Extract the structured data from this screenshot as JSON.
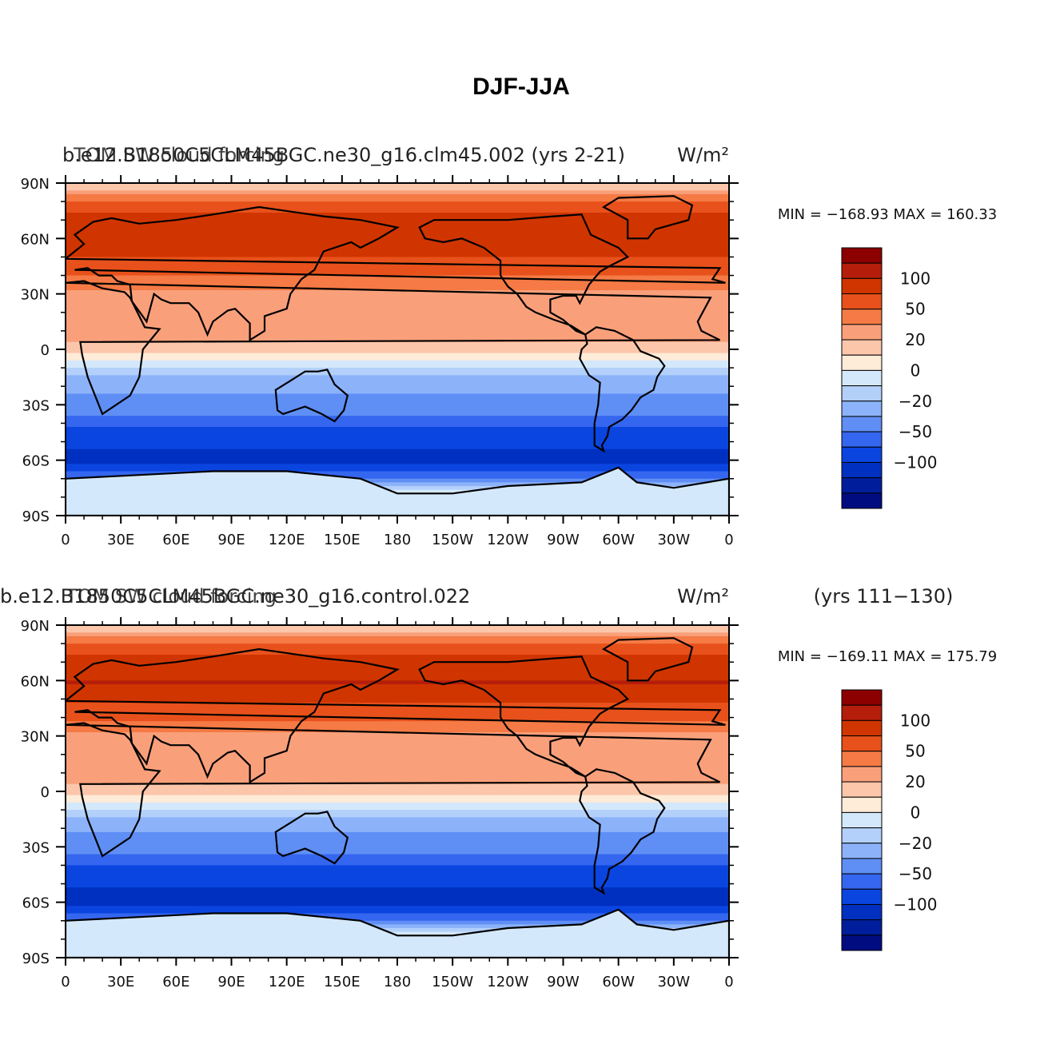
{
  "figure": {
    "title": "DJF-JJA"
  },
  "palette": [
    "#8c0000",
    "#b51e0a",
    "#d03500",
    "#e8511b",
    "#f57a45",
    "#f9a07b",
    "#fcc6ab",
    "#feebd8",
    "#d4e8fb",
    "#b3d0fb",
    "#8cb3fa",
    "#5f8ff5",
    "#3566ef",
    "#0a45e0",
    "#0030c0",
    "#001e9c",
    "#000c80"
  ],
  "land_color": "#000000",
  "chart_data": [
    {
      "type": "heatmap",
      "title_left": "b.e12.B1850C5CLM45BGC.ne30_g16.clm45.002 (yrs 2-21)",
      "title_left_overlay": "TOM SW cloud forcing",
      "title_right": "W/m²",
      "min_max": "MIN = −168.93  MAX = 160.33",
      "xlabel": "",
      "ylabel": "",
      "x_ticks": [
        "0",
        "30E",
        "60E",
        "90E",
        "120E",
        "150E",
        "180",
        "150W",
        "120W",
        "90W",
        "60W",
        "30W",
        "0"
      ],
      "y_ticks": [
        "90N",
        "60N",
        "30N",
        "0",
        "30S",
        "60S",
        "90S"
      ],
      "lat_range": [
        -90,
        90
      ],
      "lon_range": [
        0,
        360
      ],
      "colorbar_labels": [
        "100",
        "50",
        "20",
        "0",
        "−20",
        "−50",
        "−100"
      ],
      "zonal_mean_profile": [
        {
          "lat": 90,
          "value": 10
        },
        {
          "lat": 75,
          "value": 75
        },
        {
          "lat": 60,
          "value": 95
        },
        {
          "lat": 45,
          "value": 60
        },
        {
          "lat": 30,
          "value": 20
        },
        {
          "lat": 15,
          "value": 30
        },
        {
          "lat": 0,
          "value": 15
        },
        {
          "lat": -15,
          "value": -25
        },
        {
          "lat": -30,
          "value": -35
        },
        {
          "lat": -45,
          "value": -90
        },
        {
          "lat": -60,
          "value": -110
        },
        {
          "lat": -75,
          "value": -10
        },
        {
          "lat": -90,
          "value": -5
        }
      ]
    },
    {
      "type": "heatmap",
      "title_left": "b.e12.B1850C5CLM45BGC.ne30_g16.control.022",
      "title_left_overlay": "TOM SW cloud forcing",
      "title_right": "W/m²",
      "title_extra": "(yrs 111−130)",
      "min_max": "MIN = −169.11  MAX = 175.79",
      "xlabel": "",
      "ylabel": "",
      "x_ticks": [
        "0",
        "30E",
        "60E",
        "90E",
        "120E",
        "150E",
        "180",
        "150W",
        "120W",
        "90W",
        "60W",
        "30W",
        "0"
      ],
      "y_ticks": [
        "90N",
        "60N",
        "30N",
        "0",
        "30S",
        "60S",
        "90S"
      ],
      "lat_range": [
        -90,
        90
      ],
      "lon_range": [
        0,
        360
      ],
      "colorbar_labels": [
        "100",
        "50",
        "20",
        "0",
        "−20",
        "−50",
        "−100"
      ],
      "zonal_mean_profile": [
        {
          "lat": 90,
          "value": 10
        },
        {
          "lat": 75,
          "value": 75
        },
        {
          "lat": 60,
          "value": 100
        },
        {
          "lat": 45,
          "value": 65
        },
        {
          "lat": 30,
          "value": 20
        },
        {
          "lat": 15,
          "value": 30
        },
        {
          "lat": 0,
          "value": 15
        },
        {
          "lat": -15,
          "value": -25
        },
        {
          "lat": -30,
          "value": -40
        },
        {
          "lat": -45,
          "value": -95
        },
        {
          "lat": -60,
          "value": -110
        },
        {
          "lat": -75,
          "value": -10
        },
        {
          "lat": -90,
          "value": -5
        }
      ]
    }
  ]
}
